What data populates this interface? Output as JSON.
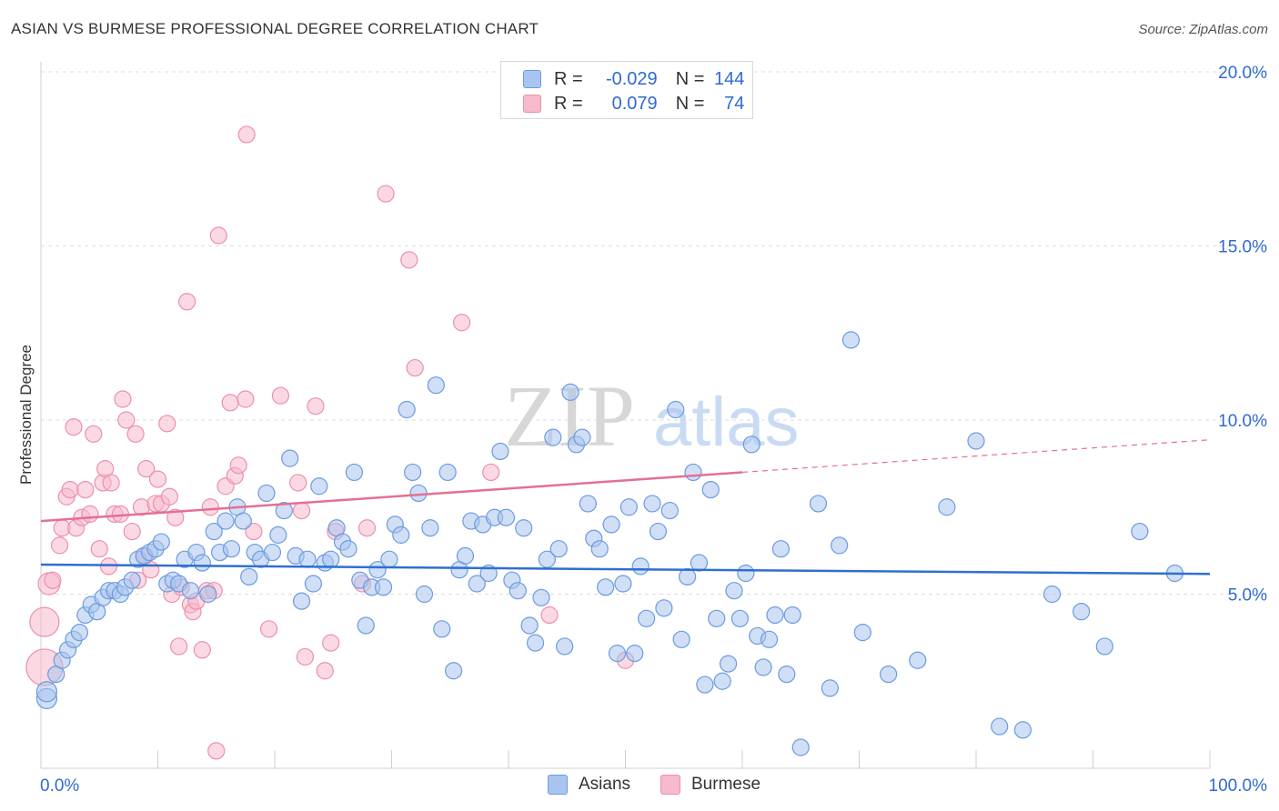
{
  "title": "ASIAN VS BURMESE PROFESSIONAL DEGREE CORRELATION CHART",
  "source": "Source: ZipAtlas.com",
  "watermark": {
    "zip": "ZIP",
    "atlas": "atlas"
  },
  "legend_top": {
    "rows": [
      {
        "r_label": "R =",
        "r_value": "-0.029",
        "n_label": "N =",
        "n_value": "144"
      },
      {
        "r_label": "R =",
        "r_value": "0.079",
        "n_label": "N =",
        "n_value": "74"
      }
    ]
  },
  "legend_bottom": [
    {
      "label": "Asians"
    },
    {
      "label": "Burmese"
    }
  ],
  "colors": {
    "asians_fill": "#a9c5ef",
    "asians_stroke": "#6b9be0",
    "asians_line": "#2f6fd0",
    "burmese_fill": "#f7b9cc",
    "burmese_stroke": "#ec8fae",
    "burmese_line": "#e46f96",
    "axis_text": "#2f6bd0",
    "grid": "#dddddd"
  },
  "chart_data": {
    "type": "scatter",
    "title": "ASIAN VS BURMESE PROFESSIONAL DEGREE CORRELATION CHART",
    "xlabel": "",
    "ylabel": "Professional Degree",
    "xlim": [
      0,
      100
    ],
    "ylim": [
      0,
      20
    ],
    "x_tick_labels": [
      "0.0%",
      "100.0%"
    ],
    "y_ticks": [
      5,
      10,
      15,
      20
    ],
    "y_tick_labels": [
      "5.0%",
      "10.0%",
      "15.0%",
      "20.0%"
    ],
    "grid": true,
    "series": [
      {
        "name": "Asians",
        "R": -0.029,
        "N": 144,
        "trend": {
          "x": [
            0,
            100
          ],
          "y": [
            5.85,
            5.58
          ]
        },
        "points": [
          [
            0.5,
            2.0
          ],
          [
            0.5,
            2.2
          ],
          [
            1.3,
            2.7
          ],
          [
            1.8,
            3.1
          ],
          [
            2.3,
            3.4
          ],
          [
            2.8,
            3.7
          ],
          [
            3.3,
            3.9
          ],
          [
            3.8,
            4.4
          ],
          [
            4.3,
            4.7
          ],
          [
            4.8,
            4.5
          ],
          [
            5.3,
            4.9
          ],
          [
            5.8,
            5.1
          ],
          [
            6.3,
            5.1
          ],
          [
            6.8,
            5.0
          ],
          [
            7.2,
            5.2
          ],
          [
            7.8,
            5.4
          ],
          [
            8.3,
            6.0
          ],
          [
            8.8,
            6.1
          ],
          [
            9.3,
            6.2
          ],
          [
            9.8,
            6.3
          ],
          [
            10.3,
            6.5
          ],
          [
            10.8,
            5.3
          ],
          [
            11.3,
            5.4
          ],
          [
            11.8,
            5.3
          ],
          [
            12.3,
            6.0
          ],
          [
            12.8,
            5.1
          ],
          [
            13.3,
            6.2
          ],
          [
            13.8,
            5.9
          ],
          [
            14.3,
            5.0
          ],
          [
            14.8,
            6.8
          ],
          [
            15.3,
            6.2
          ],
          [
            15.8,
            7.1
          ],
          [
            16.3,
            6.3
          ],
          [
            16.8,
            7.5
          ],
          [
            17.3,
            7.1
          ],
          [
            17.8,
            5.5
          ],
          [
            18.3,
            6.2
          ],
          [
            18.8,
            6.0
          ],
          [
            19.3,
            7.9
          ],
          [
            19.8,
            6.2
          ],
          [
            20.3,
            6.7
          ],
          [
            20.8,
            7.4
          ],
          [
            21.3,
            8.9
          ],
          [
            21.8,
            6.1
          ],
          [
            22.3,
            4.8
          ],
          [
            22.8,
            6.0
          ],
          [
            23.3,
            5.3
          ],
          [
            23.8,
            8.1
          ],
          [
            24.3,
            5.9
          ],
          [
            24.8,
            6.0
          ],
          [
            25.3,
            6.9
          ],
          [
            25.8,
            6.5
          ],
          [
            26.3,
            6.3
          ],
          [
            26.8,
            8.5
          ],
          [
            27.3,
            5.4
          ],
          [
            27.8,
            4.1
          ],
          [
            28.3,
            5.2
          ],
          [
            28.8,
            5.7
          ],
          [
            29.3,
            5.2
          ],
          [
            29.8,
            6.0
          ],
          [
            30.3,
            7.0
          ],
          [
            30.8,
            6.7
          ],
          [
            31.3,
            10.3
          ],
          [
            31.8,
            8.5
          ],
          [
            32.3,
            7.9
          ],
          [
            32.8,
            5.0
          ],
          [
            33.3,
            6.9
          ],
          [
            33.8,
            11.0
          ],
          [
            34.3,
            4.0
          ],
          [
            34.8,
            8.5
          ],
          [
            35.3,
            2.8
          ],
          [
            35.8,
            5.7
          ],
          [
            36.3,
            6.1
          ],
          [
            36.8,
            7.1
          ],
          [
            37.3,
            5.3
          ],
          [
            37.8,
            7.0
          ],
          [
            38.3,
            5.6
          ],
          [
            38.8,
            7.2
          ],
          [
            39.3,
            9.1
          ],
          [
            39.8,
            7.2
          ],
          [
            40.3,
            5.4
          ],
          [
            40.8,
            5.1
          ],
          [
            41.3,
            6.9
          ],
          [
            41.8,
            4.1
          ],
          [
            42.3,
            3.6
          ],
          [
            42.8,
            4.9
          ],
          [
            43.3,
            6.0
          ],
          [
            43.8,
            9.5
          ],
          [
            44.3,
            6.3
          ],
          [
            44.8,
            3.5
          ],
          [
            45.3,
            10.8
          ],
          [
            45.8,
            9.3
          ],
          [
            46.3,
            9.5
          ],
          [
            46.8,
            7.6
          ],
          [
            47.3,
            6.6
          ],
          [
            47.8,
            6.3
          ],
          [
            48.3,
            5.2
          ],
          [
            48.8,
            7.0
          ],
          [
            49.3,
            3.3
          ],
          [
            49.8,
            5.3
          ],
          [
            50.3,
            7.5
          ],
          [
            50.8,
            3.3
          ],
          [
            51.3,
            5.8
          ],
          [
            51.8,
            4.3
          ],
          [
            52.3,
            7.6
          ],
          [
            52.8,
            6.8
          ],
          [
            53.3,
            4.6
          ],
          [
            53.8,
            7.4
          ],
          [
            54.3,
            10.3
          ],
          [
            54.8,
            3.7
          ],
          [
            55.3,
            5.5
          ],
          [
            55.8,
            8.5
          ],
          [
            56.3,
            5.9
          ],
          [
            56.8,
            2.4
          ],
          [
            57.3,
            8.0
          ],
          [
            57.8,
            4.3
          ],
          [
            58.3,
            2.5
          ],
          [
            58.8,
            3.0
          ],
          [
            59.3,
            5.1
          ],
          [
            59.8,
            4.3
          ],
          [
            60.3,
            5.6
          ],
          [
            60.8,
            9.3
          ],
          [
            61.3,
            3.8
          ],
          [
            61.8,
            2.9
          ],
          [
            62.3,
            3.7
          ],
          [
            62.8,
            4.4
          ],
          [
            63.3,
            6.3
          ],
          [
            63.8,
            2.7
          ],
          [
            64.3,
            4.4
          ],
          [
            65.0,
            0.6
          ],
          [
            66.5,
            7.6
          ],
          [
            67.5,
            2.3
          ],
          [
            68.3,
            6.4
          ],
          [
            69.3,
            12.3
          ],
          [
            70.3,
            3.9
          ],
          [
            72.5,
            2.7
          ],
          [
            75.0,
            3.1
          ],
          [
            77.5,
            7.5
          ],
          [
            80.0,
            9.4
          ],
          [
            82.0,
            1.2
          ],
          [
            84.0,
            1.1
          ],
          [
            86.5,
            5.0
          ],
          [
            89.0,
            4.5
          ],
          [
            91.0,
            3.5
          ],
          [
            94.0,
            6.8
          ],
          [
            97.0,
            5.6
          ]
        ]
      },
      {
        "name": "Burmese",
        "R": 0.079,
        "N": 74,
        "trend": {
          "x": [
            0,
            60
          ],
          "y": [
            7.1,
            8.5
          ]
        },
        "points": [
          [
            0.3,
            4.2
          ],
          [
            0.3,
            2.9
          ],
          [
            0.7,
            5.3
          ],
          [
            1.0,
            5.4
          ],
          [
            1.6,
            6.4
          ],
          [
            1.8,
            6.9
          ],
          [
            2.2,
            7.8
          ],
          [
            2.5,
            8.0
          ],
          [
            2.8,
            9.8
          ],
          [
            3.0,
            6.9
          ],
          [
            3.5,
            7.2
          ],
          [
            3.8,
            8.0
          ],
          [
            4.2,
            7.3
          ],
          [
            4.5,
            9.6
          ],
          [
            5.0,
            6.3
          ],
          [
            5.3,
            8.2
          ],
          [
            5.5,
            8.6
          ],
          [
            5.8,
            5.8
          ],
          [
            6.0,
            8.2
          ],
          [
            6.3,
            7.3
          ],
          [
            6.8,
            7.3
          ],
          [
            7.0,
            10.6
          ],
          [
            7.3,
            10.0
          ],
          [
            7.8,
            6.8
          ],
          [
            8.1,
            9.6
          ],
          [
            8.3,
            5.4
          ],
          [
            8.6,
            7.5
          ],
          [
            8.9,
            6.1
          ],
          [
            9.0,
            8.6
          ],
          [
            9.4,
            5.7
          ],
          [
            9.8,
            7.6
          ],
          [
            10.0,
            8.3
          ],
          [
            10.3,
            7.6
          ],
          [
            10.8,
            9.9
          ],
          [
            11.0,
            7.8
          ],
          [
            11.2,
            5.0
          ],
          [
            11.5,
            7.2
          ],
          [
            11.8,
            3.5
          ],
          [
            12.0,
            5.2
          ],
          [
            12.5,
            13.4
          ],
          [
            12.8,
            4.7
          ],
          [
            13.0,
            4.5
          ],
          [
            13.3,
            4.8
          ],
          [
            13.8,
            3.4
          ],
          [
            14.2,
            5.1
          ],
          [
            14.5,
            7.5
          ],
          [
            14.8,
            5.1
          ],
          [
            15.2,
            15.3
          ],
          [
            15.0,
            0.5
          ],
          [
            15.8,
            8.1
          ],
          [
            16.2,
            10.5
          ],
          [
            16.6,
            8.4
          ],
          [
            16.9,
            8.7
          ],
          [
            17.5,
            10.6
          ],
          [
            17.6,
            18.2
          ],
          [
            18.2,
            6.8
          ],
          [
            19.5,
            4.0
          ],
          [
            20.5,
            10.7
          ],
          [
            22.0,
            8.2
          ],
          [
            22.3,
            7.4
          ],
          [
            22.6,
            3.2
          ],
          [
            23.5,
            10.4
          ],
          [
            24.3,
            2.8
          ],
          [
            24.8,
            3.6
          ],
          [
            25.2,
            6.8
          ],
          [
            27.5,
            5.3
          ],
          [
            27.9,
            6.9
          ],
          [
            29.5,
            16.5
          ],
          [
            31.5,
            14.6
          ],
          [
            32.0,
            11.5
          ],
          [
            36.0,
            12.8
          ],
          [
            38.5,
            8.5
          ],
          [
            43.5,
            4.4
          ],
          [
            50.0,
            3.1
          ]
        ]
      }
    ]
  }
}
